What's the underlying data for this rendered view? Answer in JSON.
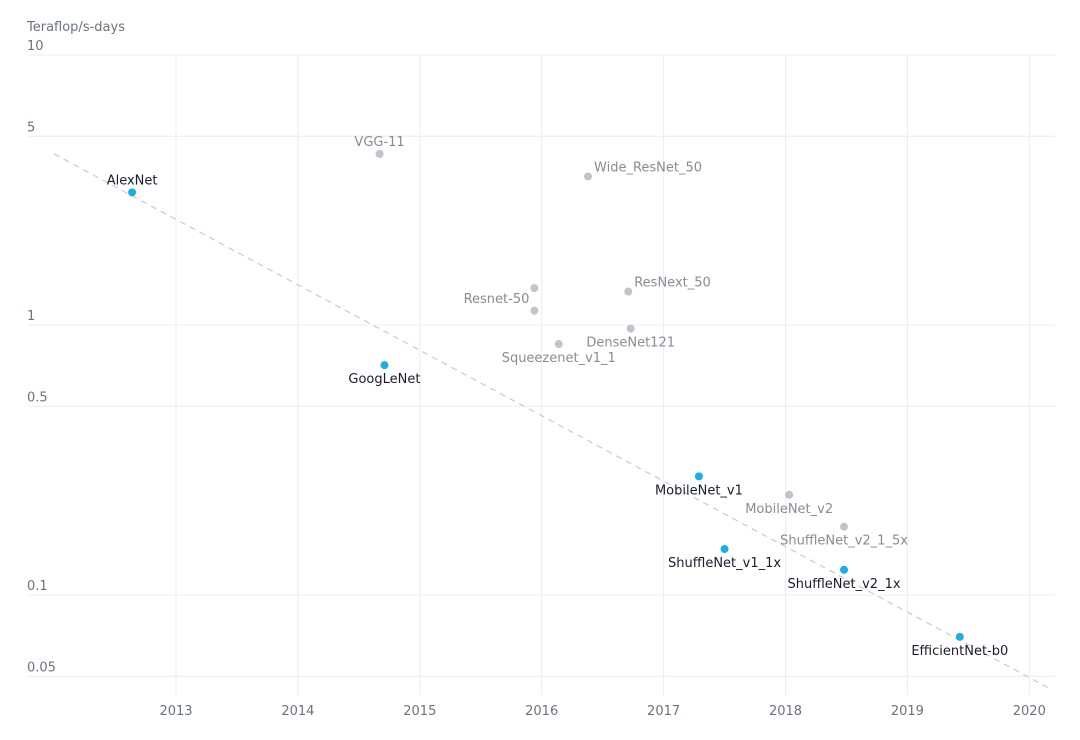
{
  "chart_data": {
    "type": "scatter",
    "ylabel": "Teraflop/s-days",
    "y_scale": "log",
    "ylim": [
      0.045,
      10
    ],
    "xlim": [
      2012.0,
      2020.2
    ],
    "x_ticks": [
      2013,
      2014,
      2015,
      2016,
      2017,
      2018,
      2019,
      2020
    ],
    "y_ticks": [
      {
        "value": 10,
        "label": "10"
      },
      {
        "value": 5,
        "label": "5"
      },
      {
        "value": 1,
        "label": "1"
      },
      {
        "value": 0.5,
        "label": "0.5"
      },
      {
        "value": 0.1,
        "label": "0.1"
      },
      {
        "value": 0.05,
        "label": "0.05"
      }
    ],
    "grid": true,
    "colors": {
      "highlight": "#1aaee5",
      "other": "#c3c3cd",
      "highlight_text": "#1b1b2f",
      "other_text": "#8a8a96"
    },
    "trend_line": {
      "from": {
        "x": 2012.0,
        "y": 4.3
      },
      "to": {
        "x": 2020.17,
        "y": 0.045
      }
    },
    "points": [
      {
        "name": "AlexNet",
        "x": 2012.64,
        "y": 3.1,
        "highlight": true,
        "label_pos": "above"
      },
      {
        "name": "VGG-11",
        "x": 2014.67,
        "y": 4.3,
        "highlight": false,
        "label_pos": "above"
      },
      {
        "name": "Wide_ResNet_50",
        "x": 2016.38,
        "y": 3.55,
        "highlight": false,
        "label_pos": "right"
      },
      {
        "name": "GoogLeNet",
        "x": 2014.71,
        "y": 0.71,
        "highlight": true,
        "label_pos": "below"
      },
      {
        "name": "Resnet-50",
        "x": 2015.94,
        "y": 1.37,
        "highlight": false,
        "label_pos": "left-below"
      },
      {
        "name": "",
        "x": 2015.94,
        "y": 1.13,
        "highlight": false,
        "label_pos": "none"
      },
      {
        "name": "ResNext_50",
        "x": 2016.71,
        "y": 1.33,
        "highlight": false,
        "label_pos": "right"
      },
      {
        "name": "DenseNet121",
        "x": 2016.73,
        "y": 0.97,
        "highlight": false,
        "label_pos": "below"
      },
      {
        "name": "Squeezenet_v1_1",
        "x": 2016.14,
        "y": 0.85,
        "highlight": false,
        "label_pos": "below"
      },
      {
        "name": "MobileNet_v1",
        "x": 2017.29,
        "y": 0.275,
        "highlight": true,
        "label_pos": "below"
      },
      {
        "name": "MobileNet_v2",
        "x": 2018.03,
        "y": 0.235,
        "highlight": false,
        "label_pos": "below"
      },
      {
        "name": "ShuffleNet_v2_1_5x",
        "x": 2018.48,
        "y": 0.179,
        "highlight": false,
        "label_pos": "below"
      },
      {
        "name": "ShuffleNet_v1_1x",
        "x": 2017.5,
        "y": 0.148,
        "highlight": true,
        "label_pos": "below"
      },
      {
        "name": "ShuffleNet_v2_1x",
        "x": 2018.48,
        "y": 0.124,
        "highlight": true,
        "label_pos": "below"
      },
      {
        "name": "EfficientNet-b0",
        "x": 2019.43,
        "y": 0.07,
        "highlight": true,
        "label_pos": "below"
      }
    ]
  }
}
